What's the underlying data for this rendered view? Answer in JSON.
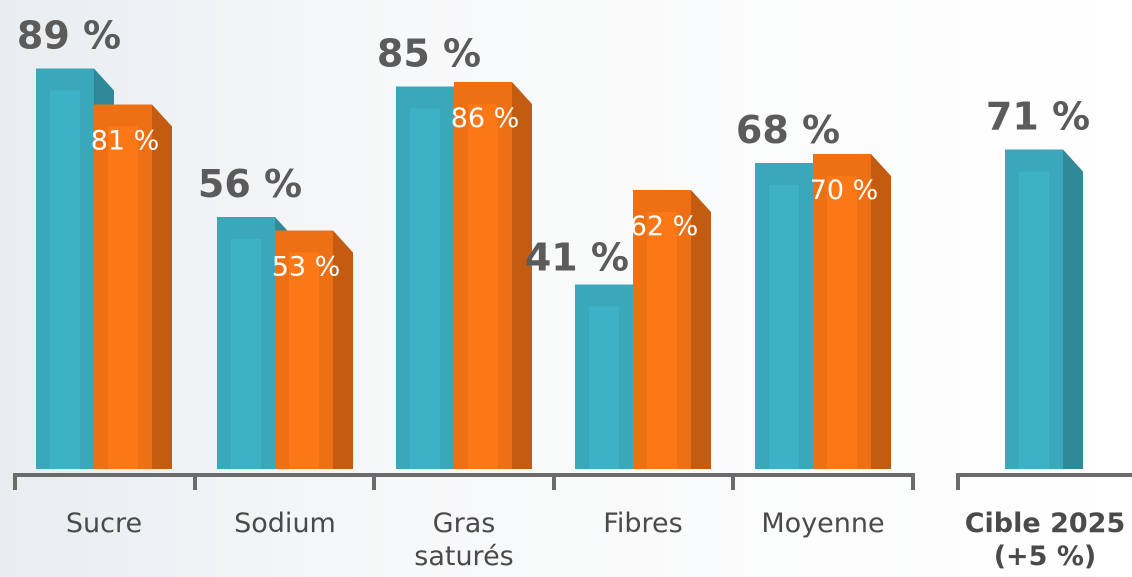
{
  "chart_data": {
    "type": "bar",
    "categories": [
      "Sucre",
      "Sodium",
      "Gras saturés",
      "Fibres",
      "Moyenne"
    ],
    "series": [
      {
        "values": [
          89,
          56,
          85,
          41,
          68
        ],
        "labels": [
          "89 %",
          "56 %",
          "85 %",
          "41 %",
          "68 %"
        ],
        "color": "#3aa7bb"
      },
      {
        "values": [
          81,
          53,
          86,
          62,
          70
        ],
        "labels": [
          "81 %",
          "53 %",
          "86 %",
          "62 %",
          "70 %"
        ],
        "color": "#ee7015"
      }
    ],
    "target": {
      "label_lines": [
        "Cible 2025",
        "(+5 %)"
      ],
      "value": 71,
      "value_label": "71 %",
      "color": "#3aa7bb"
    },
    "category_label_lines": [
      [
        "Sucre"
      ],
      [
        "Sodium"
      ],
      [
        "Gras",
        "saturés"
      ],
      [
        "Fibres"
      ],
      [
        "Moyenne"
      ]
    ],
    "ylim": [
      0,
      100
    ],
    "grid": false,
    "legend": "none"
  }
}
